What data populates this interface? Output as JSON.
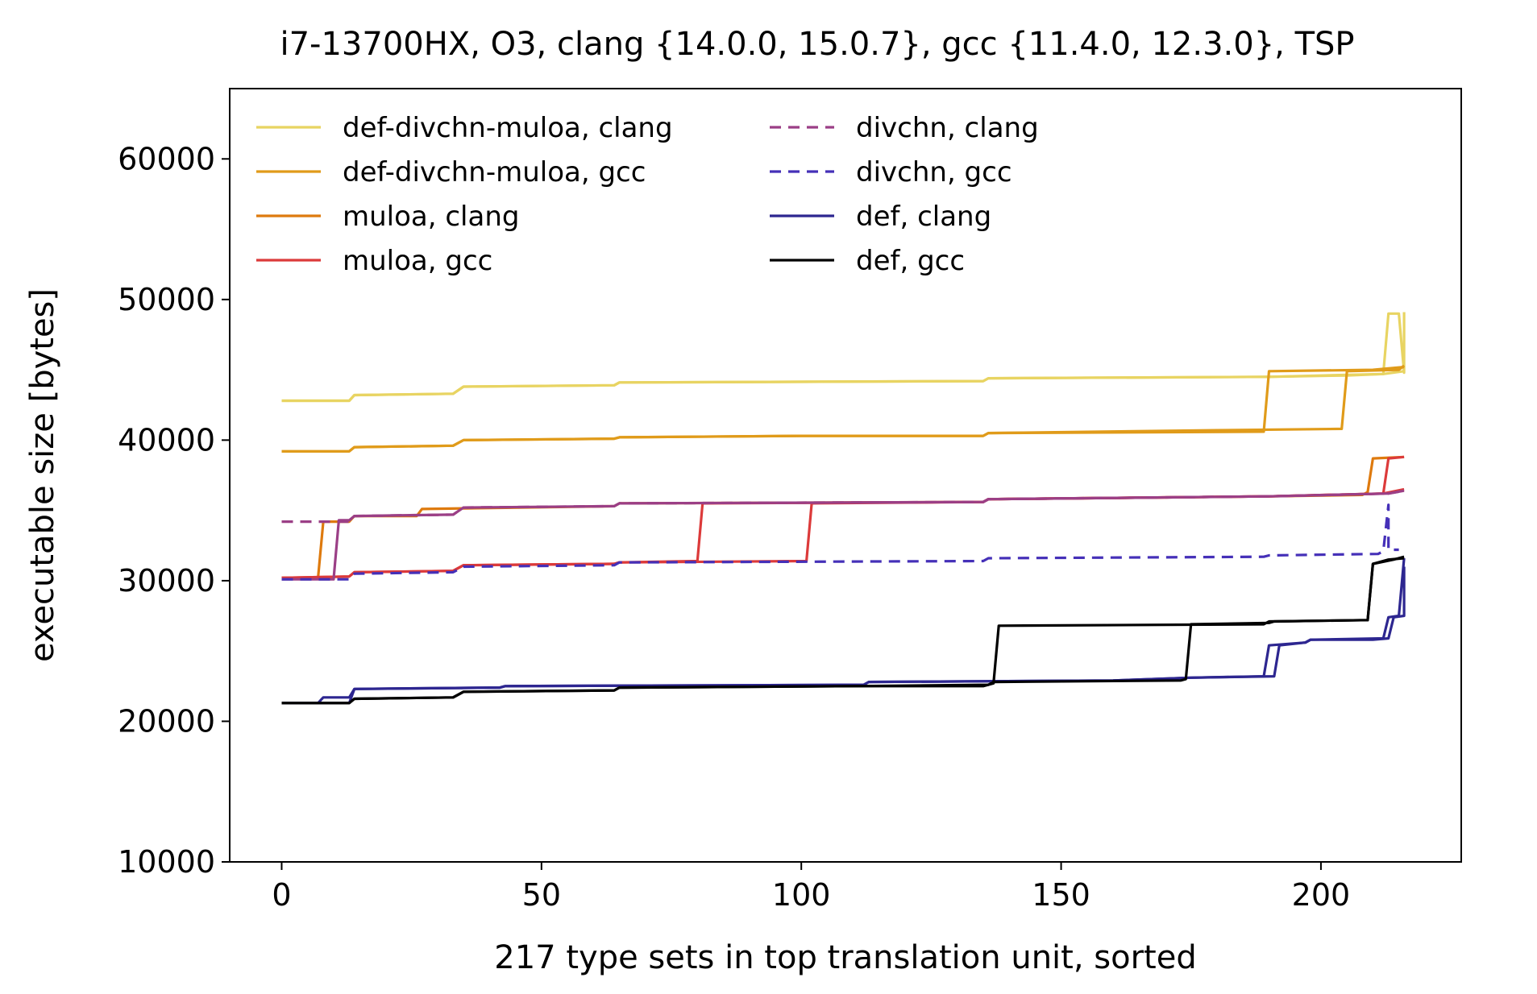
{
  "chart_data": {
    "type": "line",
    "title": "i7-13700HX, O3, clang {14.0.0, 15.0.7}, gcc {11.4.0, 12.3.0}, TSP",
    "xlabel": "217 type sets in top translation unit, sorted",
    "ylabel": "executable size [bytes]",
    "xlim": [
      -10,
      227
    ],
    "ylim": [
      10000,
      65000
    ],
    "xticks": [
      0,
      50,
      100,
      150,
      200
    ],
    "yticks": [
      10000,
      20000,
      30000,
      40000,
      50000,
      60000
    ],
    "grid": false,
    "legend": {
      "location": "top-left",
      "columns": 2
    },
    "series": [
      {
        "name": "def-divchn-muloa, clang",
        "color": "#e8d462",
        "dash": "solid",
        "points": [
          [
            0,
            42800
          ],
          [
            13,
            42800
          ],
          [
            14,
            43200
          ],
          [
            33,
            43300
          ],
          [
            35,
            43800
          ],
          [
            64,
            43900
          ],
          [
            65,
            44100
          ],
          [
            135,
            44200
          ],
          [
            136,
            44400
          ],
          [
            190,
            44500
          ],
          [
            212,
            44700
          ],
          [
            213,
            49000
          ],
          [
            215,
            49000
          ],
          [
            216,
            44800
          ],
          [
            216,
            49100
          ]
        ]
      },
      {
        "name": "def-divchn-muloa, clang",
        "color": "#e8d462",
        "dash": "solid",
        "points": [
          [
            0,
            42800
          ],
          [
            13,
            42800
          ],
          [
            14,
            43200
          ],
          [
            33,
            43300
          ],
          [
            35,
            43800
          ],
          [
            64,
            43900
          ],
          [
            65,
            44100
          ],
          [
            135,
            44200
          ],
          [
            136,
            44400
          ],
          [
            190,
            44500
          ],
          [
            205,
            44600
          ],
          [
            212,
            44700
          ],
          [
            214,
            44800
          ],
          [
            216,
            44900
          ]
        ]
      },
      {
        "name": "def-divchn-muloa, gcc",
        "color": "#e09b1a",
        "dash": "solid",
        "points": [
          [
            0,
            39200
          ],
          [
            13,
            39200
          ],
          [
            14,
            39500
          ],
          [
            33,
            39600
          ],
          [
            35,
            40000
          ],
          [
            64,
            40100
          ],
          [
            65,
            40200
          ],
          [
            100,
            40300
          ],
          [
            135,
            40300
          ],
          [
            136,
            40500
          ],
          [
            189,
            40600
          ],
          [
            190,
            44900
          ],
          [
            210,
            45000
          ],
          [
            216,
            45200
          ]
        ]
      },
      {
        "name": "def-divchn-muloa, gcc",
        "color": "#e09b1a",
        "dash": "solid",
        "points": [
          [
            0,
            39200
          ],
          [
            13,
            39200
          ],
          [
            14,
            39500
          ],
          [
            33,
            39600
          ],
          [
            35,
            40000
          ],
          [
            64,
            40100
          ],
          [
            65,
            40200
          ],
          [
            100,
            40300
          ],
          [
            135,
            40300
          ],
          [
            136,
            40500
          ],
          [
            180,
            40700
          ],
          [
            204,
            40800
          ],
          [
            205,
            44900
          ],
          [
            215,
            45000
          ],
          [
            216,
            45300
          ]
        ]
      },
      {
        "name": "muloa, clang",
        "color": "#de7a0e",
        "dash": "solid",
        "points": [
          [
            0,
            30200
          ],
          [
            7,
            30200
          ],
          [
            8,
            34200
          ],
          [
            13,
            34200
          ],
          [
            14,
            34600
          ],
          [
            26,
            34600
          ],
          [
            27,
            35100
          ],
          [
            64,
            35300
          ],
          [
            65,
            35500
          ],
          [
            135,
            35600
          ],
          [
            136,
            35800
          ],
          [
            190,
            36000
          ],
          [
            208,
            36100
          ],
          [
            209,
            36300
          ],
          [
            210,
            38700
          ],
          [
            216,
            38800
          ]
        ]
      },
      {
        "name": "muloa, gcc",
        "color": "#dc3a3a",
        "dash": "solid",
        "points": [
          [
            0,
            30200
          ],
          [
            13,
            30300
          ],
          [
            14,
            30600
          ],
          [
            33,
            30700
          ],
          [
            35,
            31100
          ],
          [
            64,
            31200
          ],
          [
            65,
            31300
          ],
          [
            80,
            31400
          ],
          [
            81,
            35500
          ],
          [
            135,
            35600
          ],
          [
            136,
            35800
          ],
          [
            190,
            36000
          ],
          [
            212,
            36200
          ],
          [
            213,
            38700
          ],
          [
            216,
            38800
          ]
        ]
      },
      {
        "name": "muloa, gcc",
        "color": "#dc3a3a",
        "dash": "solid",
        "points": [
          [
            0,
            30200
          ],
          [
            13,
            30300
          ],
          [
            14,
            30600
          ],
          [
            33,
            30700
          ],
          [
            35,
            31100
          ],
          [
            64,
            31200
          ],
          [
            65,
            31300
          ],
          [
            101,
            31400
          ],
          [
            102,
            35500
          ],
          [
            135,
            35600
          ],
          [
            136,
            35800
          ],
          [
            190,
            36000
          ],
          [
            212,
            36200
          ],
          [
            216,
            36500
          ]
        ]
      },
      {
        "name": "divchn, clang",
        "color": "#9b3f86",
        "dash": "dashed",
        "points": [
          [
            0,
            34200
          ],
          [
            13,
            34200
          ],
          [
            14,
            34600
          ],
          [
            33,
            34700
          ],
          [
            35,
            35200
          ],
          [
            64,
            35300
          ],
          [
            65,
            35500
          ],
          [
            135,
            35600
          ],
          [
            136,
            35800
          ],
          [
            190,
            36000
          ],
          [
            213,
            36200
          ],
          [
            216,
            36400
          ]
        ]
      },
      {
        "name": "divchn, clang",
        "color": "#9b3f86",
        "dash": "solid",
        "points": [
          [
            0,
            30100
          ],
          [
            10,
            30100
          ],
          [
            11,
            34300
          ],
          [
            13,
            34300
          ],
          [
            14,
            34600
          ],
          [
            33,
            34700
          ],
          [
            35,
            35200
          ],
          [
            64,
            35300
          ],
          [
            65,
            35500
          ],
          [
            135,
            35600
          ],
          [
            136,
            35800
          ],
          [
            190,
            36000
          ],
          [
            213,
            36200
          ],
          [
            216,
            36400
          ]
        ]
      },
      {
        "name": "divchn, gcc",
        "color": "#4530b8",
        "dash": "dashed",
        "points": [
          [
            0,
            30100
          ],
          [
            13,
            30100
          ],
          [
            14,
            30500
          ],
          [
            33,
            30600
          ],
          [
            35,
            31000
          ],
          [
            64,
            31100
          ],
          [
            65,
            31300
          ],
          [
            135,
            31400
          ],
          [
            136,
            31600
          ],
          [
            189,
            31700
          ],
          [
            190,
            31800
          ],
          [
            211,
            31900
          ],
          [
            212,
            32100
          ],
          [
            213,
            35400
          ],
          [
            213,
            32200
          ],
          [
            215,
            32200
          ]
        ]
      },
      {
        "name": "def, clang",
        "color": "#2d2690",
        "dash": "solid",
        "points": [
          [
            0,
            21300
          ],
          [
            7,
            21300
          ],
          [
            8,
            21700
          ],
          [
            13,
            21700
          ],
          [
            14,
            22300
          ],
          [
            42,
            22400
          ],
          [
            43,
            22500
          ],
          [
            112,
            22600
          ],
          [
            113,
            22800
          ],
          [
            160,
            22900
          ],
          [
            175,
            23100
          ],
          [
            189,
            23200
          ],
          [
            190,
            25400
          ],
          [
            197,
            25600
          ],
          [
            198,
            25800
          ],
          [
            210,
            25800
          ],
          [
            213,
            25900
          ],
          [
            214,
            27400
          ],
          [
            216,
            27500
          ],
          [
            216,
            31000
          ]
        ]
      },
      {
        "name": "def, clang",
        "color": "#2d2690",
        "dash": "solid",
        "points": [
          [
            0,
            21300
          ],
          [
            13,
            21300
          ],
          [
            14,
            22300
          ],
          [
            42,
            22400
          ],
          [
            43,
            22500
          ],
          [
            112,
            22600
          ],
          [
            113,
            22800
          ],
          [
            160,
            22900
          ],
          [
            175,
            23100
          ],
          [
            191,
            23200
          ],
          [
            192,
            25400
          ],
          [
            197,
            25600
          ],
          [
            198,
            25800
          ],
          [
            212,
            25900
          ],
          [
            213,
            27400
          ],
          [
            215,
            27500
          ],
          [
            216,
            31600
          ]
        ]
      },
      {
        "name": "def, gcc",
        "color": "#000000",
        "dash": "solid",
        "points": [
          [
            0,
            21300
          ],
          [
            13,
            21300
          ],
          [
            14,
            21600
          ],
          [
            33,
            21700
          ],
          [
            35,
            22100
          ],
          [
            64,
            22200
          ],
          [
            65,
            22400
          ],
          [
            110,
            22500
          ],
          [
            136,
            22600
          ],
          [
            137,
            22800
          ],
          [
            173,
            22900
          ],
          [
            174,
            23000
          ],
          [
            175,
            26900
          ],
          [
            190,
            27000
          ],
          [
            191,
            27100
          ],
          [
            209,
            27200
          ],
          [
            210,
            31200
          ],
          [
            213,
            31500
          ],
          [
            216,
            31600
          ]
        ]
      },
      {
        "name": "def, gcc",
        "color": "#000000",
        "dash": "solid",
        "points": [
          [
            0,
            21300
          ],
          [
            13,
            21300
          ],
          [
            14,
            21600
          ],
          [
            33,
            21700
          ],
          [
            35,
            22100
          ],
          [
            64,
            22200
          ],
          [
            65,
            22400
          ],
          [
            110,
            22500
          ],
          [
            135,
            22500
          ],
          [
            137,
            22700
          ],
          [
            138,
            26800
          ],
          [
            189,
            26900
          ],
          [
            190,
            27100
          ],
          [
            209,
            27200
          ],
          [
            210,
            31200
          ],
          [
            214,
            31500
          ],
          [
            216,
            31700
          ]
        ]
      }
    ],
    "legend_entries": [
      {
        "label": "def-divchn-muloa, clang",
        "color": "#e8d462",
        "dash": "solid"
      },
      {
        "label": "def-divchn-muloa, gcc",
        "color": "#e09b1a",
        "dash": "solid"
      },
      {
        "label": "muloa, clang",
        "color": "#de7a0e",
        "dash": "solid"
      },
      {
        "label": "muloa, gcc",
        "color": "#dc3a3a",
        "dash": "solid"
      },
      {
        "label": "divchn, clang",
        "color": "#9b3f86",
        "dash": "dashed"
      },
      {
        "label": "divchn, gcc",
        "color": "#4530b8",
        "dash": "dashed"
      },
      {
        "label": "def, clang",
        "color": "#2d2690",
        "dash": "solid"
      },
      {
        "label": "def, gcc",
        "color": "#000000",
        "dash": "solid"
      }
    ]
  }
}
